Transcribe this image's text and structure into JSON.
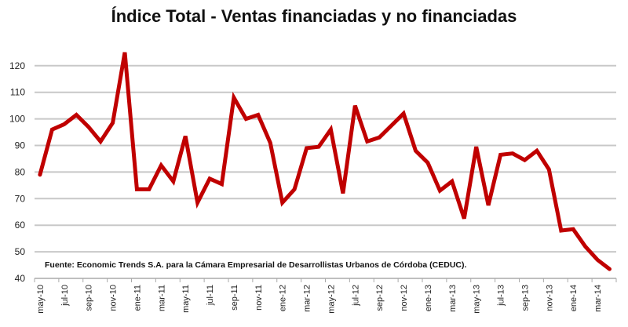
{
  "chart_data": {
    "type": "line",
    "title": "Índice Total - Ventas financiadas y no financiadas",
    "source_note": "Fuente: Economic Trends S.A. para la Cámara Empresarial de Desarrollistas Urbanos de Córdoba (CEDUC).",
    "xlabel": "",
    "ylabel": "",
    "ylim": [
      40,
      130
    ],
    "yticks": [
      40,
      50,
      60,
      70,
      80,
      90,
      100,
      110,
      120
    ],
    "grid": true,
    "x_tick_labels": [
      "may-10",
      "jul-10",
      "sep-10",
      "nov-10",
      "ene-11",
      "mar-11",
      "may-11",
      "jul-11",
      "sep-11",
      "nov-11",
      "ene-12",
      "mar-12",
      "may-12",
      "jul-12",
      "sep-12",
      "nov-12",
      "ene-13",
      "mar-13",
      "may-13",
      "jul-13",
      "sep-13",
      "nov-13",
      "ene-14",
      "mar-14"
    ],
    "series": [
      {
        "name": "Índice Total",
        "color": "#c00000",
        "values": [
          79,
          96,
          98,
          101.5,
          97,
          91.5,
          98.5,
          125,
          73.5,
          73.5,
          82.5,
          76.5,
          93.5,
          68.5,
          77.5,
          75.5,
          108,
          100,
          101.5,
          91,
          68.5,
          73.5,
          89,
          89.5,
          96,
          72,
          105,
          91.5,
          93,
          97.5,
          102,
          88,
          83.5,
          73,
          76.5,
          62.5,
          89.5,
          67.5,
          86.5,
          87,
          84.5,
          88,
          81,
          58,
          58.5,
          52,
          47,
          43.5
        ]
      }
    ]
  }
}
